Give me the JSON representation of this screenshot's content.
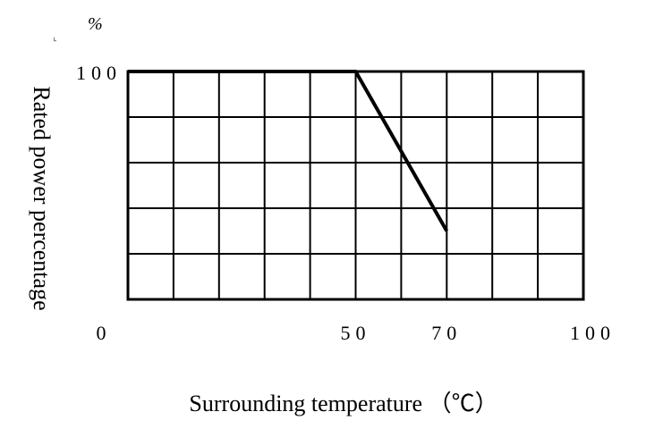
{
  "chart_data": {
    "type": "line",
    "xlabel": "Surrounding temperature （℃）",
    "ylabel": "Rated power percentage",
    "y_unit": "%",
    "x_ticks": [
      "0",
      "50",
      "70",
      "100"
    ],
    "y_ticks": [
      "100"
    ],
    "xlim": [
      0,
      100
    ],
    "ylim": [
      0,
      100
    ],
    "grid": true,
    "x_gridlines": [
      0,
      10,
      20,
      30,
      40,
      50,
      60,
      70,
      80,
      90,
      100
    ],
    "y_gridlines": [
      0,
      20,
      40,
      60,
      80,
      100
    ],
    "series": [
      {
        "x": [
          0,
          50,
          70
        ],
        "y": [
          100,
          100,
          30
        ]
      }
    ]
  }
}
